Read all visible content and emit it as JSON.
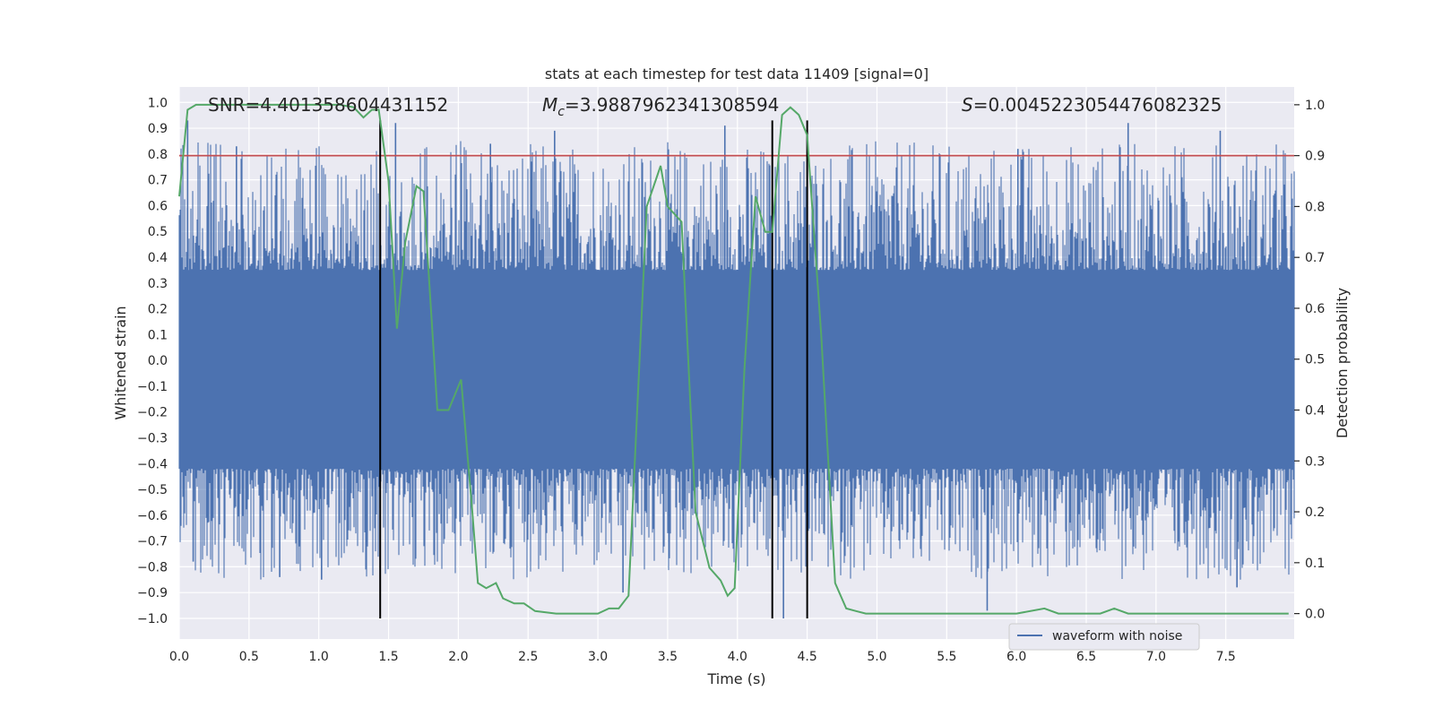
{
  "chart_data": {
    "type": "line",
    "title": "stats at each timestep for test data 11409 [signal=0]",
    "xlabel": "Time (s)",
    "ylabel": "Whitened strain",
    "ylabel_right": "Detection probability",
    "xlim": [
      0.0,
      7.99
    ],
    "ylim": [
      -1.08,
      1.06
    ],
    "ylim_right": [
      -0.05,
      1.035
    ],
    "x_ticks": [
      "0.0",
      "0.5",
      "1.0",
      "1.5",
      "2.0",
      "2.5",
      "3.0",
      "3.5",
      "4.0",
      "4.5",
      "5.0",
      "5.5",
      "6.0",
      "6.5",
      "7.0",
      "7.5"
    ],
    "y_ticks": [
      "1.0",
      "0.9",
      "0.8",
      "0.7",
      "0.6",
      "0.5",
      "0.4",
      "0.3",
      "0.2",
      "0.1",
      "0.0",
      "−0.1",
      "−0.2",
      "−0.3",
      "−0.4",
      "−0.5",
      "−0.6",
      "−0.7",
      "−0.8",
      "−0.9",
      "−1.0"
    ],
    "y_ticks_right": [
      "1.0",
      "0.9",
      "0.8",
      "0.7",
      "0.6",
      "0.5",
      "0.4",
      "0.3",
      "0.2",
      "0.1",
      "0.0"
    ],
    "grid": true,
    "annotations": {
      "snr": "SNR=4.401358604431152",
      "mc_symbol": "M",
      "mc_sub": "c",
      "mc_value": "=3.9887962341308594",
      "s_symbol": "S",
      "s_value": "=0.0045223054476082325"
    },
    "legend": {
      "label": "waveform with noise",
      "position": "lower-right"
    },
    "colors": {
      "waveform": "#4c72b0",
      "probability": "#55a868",
      "threshold": "#c44e52",
      "markers": "#000000",
      "background": "#eaeaf2",
      "grid": "#ffffff"
    },
    "threshold": 0.9,
    "vertical_markers": [
      1.44,
      4.25,
      4.5
    ],
    "marker_y_range": [
      -1.0,
      0.93
    ],
    "waveform_series": {
      "name": "waveform with noise",
      "band_lower": -0.42,
      "band_upper": 0.35,
      "peak_envelope": 0.93,
      "trough_envelope": -1.0,
      "notable_spikes": [
        {
          "x": 0.06,
          "y": 0.93
        },
        {
          "x": 0.1,
          "y": -0.78
        },
        {
          "x": 0.41,
          "y": 0.83
        },
        {
          "x": 0.72,
          "y": -0.84
        },
        {
          "x": 1.02,
          "y": -0.85
        },
        {
          "x": 1.55,
          "y": 0.92
        },
        {
          "x": 2.23,
          "y": 0.84
        },
        {
          "x": 2.69,
          "y": 0.89
        },
        {
          "x": 3.18,
          "y": -0.9
        },
        {
          "x": 3.91,
          "y": 0.91
        },
        {
          "x": 4.33,
          "y": -1.0
        },
        {
          "x": 5.79,
          "y": -0.97
        },
        {
          "x": 6.01,
          "y": 0.82
        },
        {
          "x": 6.8,
          "y": 0.92
        },
        {
          "x": 7.46,
          "y": 0.89
        },
        {
          "x": 7.58,
          "y": -0.88
        }
      ]
    },
    "probability_series": {
      "x": [
        0.0,
        0.06,
        0.12,
        0.2,
        0.4,
        0.6,
        0.8,
        1.0,
        1.15,
        1.25,
        1.32,
        1.38,
        1.43,
        1.5,
        1.56,
        1.62,
        1.7,
        1.75,
        1.85,
        1.93,
        2.02,
        2.1,
        2.14,
        2.2,
        2.27,
        2.32,
        2.4,
        2.47,
        2.55,
        2.7,
        2.85,
        3.0,
        3.08,
        3.15,
        3.22,
        3.35,
        3.45,
        3.5,
        3.6,
        3.7,
        3.8,
        3.88,
        3.93,
        3.98,
        4.05,
        4.13,
        4.2,
        4.25,
        4.32,
        4.38,
        4.44,
        4.5,
        4.6,
        4.7,
        4.78,
        4.85,
        4.92,
        5.0,
        5.2,
        5.4,
        5.6,
        5.8,
        6.0,
        6.2,
        6.3,
        6.5,
        6.6,
        6.7,
        6.8,
        7.0,
        7.3,
        7.6,
        7.8,
        7.95
      ],
      "y": [
        0.82,
        0.99,
        1.0,
        1.0,
        1.0,
        1.0,
        1.0,
        1.0,
        1.0,
        0.995,
        0.975,
        0.99,
        0.99,
        0.85,
        0.56,
        0.73,
        0.84,
        0.83,
        0.4,
        0.4,
        0.46,
        0.2,
        0.06,
        0.05,
        0.06,
        0.03,
        0.02,
        0.02,
        0.005,
        0.0,
        0.0,
        0.0,
        0.01,
        0.01,
        0.035,
        0.8,
        0.88,
        0.8,
        0.77,
        0.2,
        0.09,
        0.065,
        0.035,
        0.05,
        0.48,
        0.82,
        0.75,
        0.75,
        0.98,
        0.995,
        0.98,
        0.94,
        0.55,
        0.06,
        0.01,
        0.005,
        0.0,
        0.0,
        0.0,
        0.0,
        0.0,
        0.0,
        0.0,
        0.01,
        0.0,
        0.0,
        0.0,
        0.01,
        0.0,
        0.0,
        0.0,
        0.0,
        0.0,
        0.0
      ]
    }
  }
}
